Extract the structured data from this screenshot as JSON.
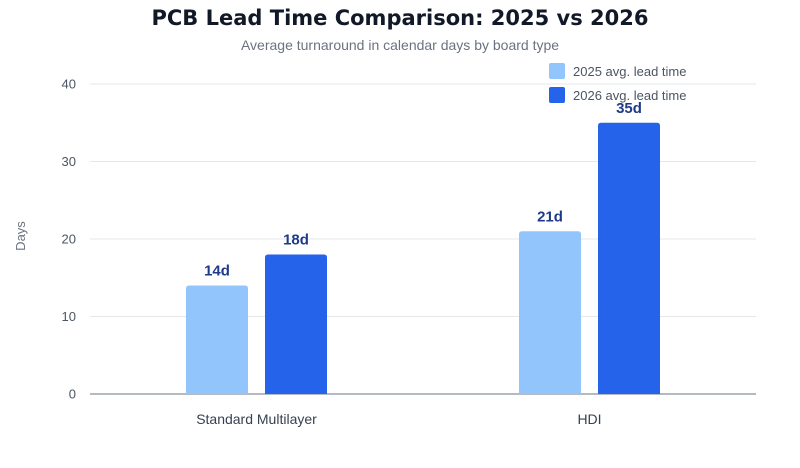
{
  "chart_data": {
    "type": "bar",
    "title": "PCB Lead Time Comparison: 2025 vs 2026",
    "subtitle": "Average turnaround in calendar days by board type",
    "ylabel": "Days",
    "xlabel": "",
    "ylim": [
      0,
      40
    ],
    "yticks": [
      0,
      10,
      20,
      30,
      40
    ],
    "grid": true,
    "legend_position": "top-right",
    "categories": [
      "Standard Multilayer",
      "HDI"
    ],
    "series": [
      {
        "name": "2025 avg. lead time",
        "color": "#93c5fd",
        "values": [
          14,
          21
        ],
        "labels": [
          "14d",
          "21d"
        ]
      },
      {
        "name": "2026 avg. lead time",
        "color": "#2563eb",
        "values": [
          18,
          35
        ],
        "labels": [
          "18d",
          "35d"
        ]
      }
    ]
  }
}
